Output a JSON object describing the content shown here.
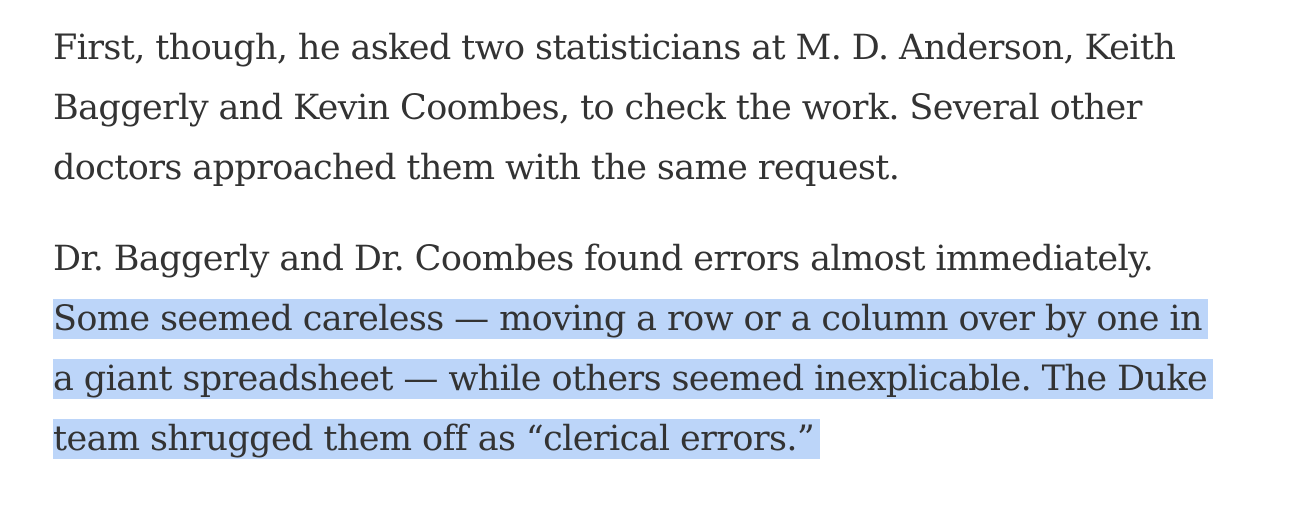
{
  "article": {
    "paragraph1": {
      "lines": [
        "First, though, he asked two statisticians at M. D. Anderson, Keith",
        "Baggerly and Kevin Coombes, to check the work. Several other",
        "doctors approached them with the same request."
      ]
    },
    "paragraph2": {
      "lines": [
        "Dr. Baggerly and Dr. Coombes found errors almost immediately.",
        "Some seemed careless — moving a row or a column over by one in",
        "a giant spreadsheet — while others seemed inexplicable. The Duke",
        "team shrugged them off as “clerical errors.”"
      ],
      "selected_text": "Some seemed careless — moving a row or a column over by one in a giant spreadsheet — while others seemed inexplicable. The Duke team shrugged them off as “clerical errors.”"
    }
  },
  "colors": {
    "text": "#333333",
    "selection_highlight": "#bcd5f9",
    "background": "#ffffff"
  }
}
